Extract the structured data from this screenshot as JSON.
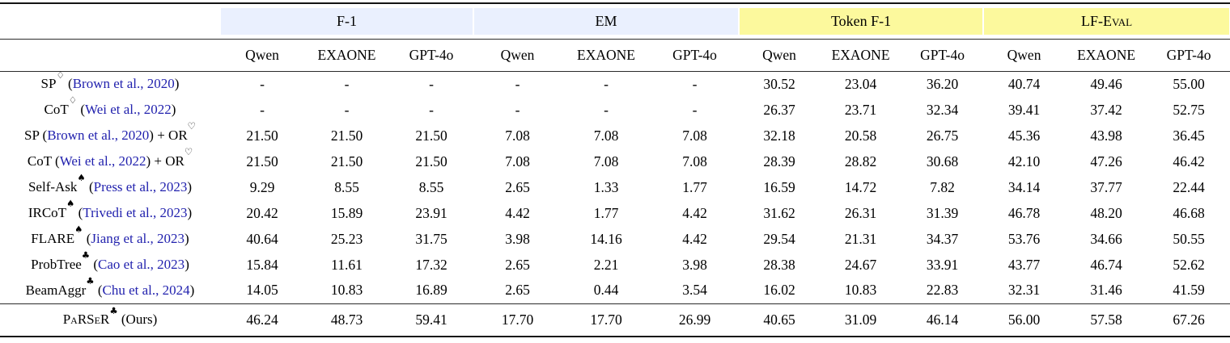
{
  "table": {
    "groups": [
      {
        "label": "F-1",
        "band": "blue"
      },
      {
        "label": "EM",
        "band": "blue"
      },
      {
        "label": "Token F-1",
        "band": "yellow"
      },
      {
        "label": "LF-Eval",
        "band": "yellow"
      }
    ],
    "models": [
      "Qwen",
      "EXAONE",
      "GPT-4o"
    ],
    "rows": [
      {
        "name": "SP",
        "name_sup": "♢",
        "cite": "Brown et al., 2020",
        "tail": "",
        "tail_sup": "",
        "values": [
          "-",
          "-",
          "-",
          "-",
          "-",
          "-",
          "30.52",
          "23.04",
          "36.20",
          "40.74",
          "49.46",
          "55.00"
        ]
      },
      {
        "name": "CoT",
        "name_sup": "♢",
        "cite": "Wei et al., 2022",
        "tail": "",
        "tail_sup": "",
        "values": [
          "-",
          "-",
          "-",
          "-",
          "-",
          "-",
          "26.37",
          "23.71",
          "32.34",
          "39.41",
          "37.42",
          "52.75"
        ]
      },
      {
        "name": "SP",
        "name_sup": "",
        "cite": "Brown et al., 2020",
        "tail": " + OR",
        "tail_sup": "♡",
        "values": [
          "21.50",
          "21.50",
          "21.50",
          "7.08",
          "7.08",
          "7.08",
          "32.18",
          "20.58",
          "26.75",
          "45.36",
          "43.98",
          "36.45"
        ]
      },
      {
        "name": "CoT",
        "name_sup": "",
        "cite": "Wei et al., 2022",
        "tail": " + OR",
        "tail_sup": "♡",
        "values": [
          "21.50",
          "21.50",
          "21.50",
          "7.08",
          "7.08",
          "7.08",
          "28.39",
          "28.82",
          "30.68",
          "42.10",
          "47.26",
          "46.42"
        ]
      },
      {
        "name": "Self-Ask",
        "name_sup": "♠",
        "cite": "Press et al., 2023",
        "tail": "",
        "tail_sup": "",
        "values": [
          "9.29",
          "8.55",
          "8.55",
          "2.65",
          "1.33",
          "1.77",
          "16.59",
          "14.72",
          "7.82",
          "34.14",
          "37.77",
          "22.44"
        ]
      },
      {
        "name": "IRCoT",
        "name_sup": "♠",
        "cite": "Trivedi et al., 2023",
        "tail": "",
        "tail_sup": "",
        "values": [
          "20.42",
          "15.89",
          "23.91",
          "4.42",
          "1.77",
          "4.42",
          "31.62",
          "26.31",
          "31.39",
          "46.78",
          "48.20",
          "46.68"
        ]
      },
      {
        "name": "FLARE",
        "name_sup": "♠",
        "cite": "Jiang et al., 2023",
        "tail": "",
        "tail_sup": "",
        "values": [
          "40.64",
          "25.23",
          "31.75",
          "3.98",
          "14.16",
          "4.42",
          "29.54",
          "21.31",
          "34.37",
          "53.76",
          "34.66",
          "50.55"
        ]
      },
      {
        "name": "ProbTree",
        "name_sup": "♣",
        "cite": "Cao et al., 2023",
        "tail": "",
        "tail_sup": "",
        "values": [
          "15.84",
          "11.61",
          "17.32",
          "2.65",
          "2.21",
          "3.98",
          "28.38",
          "24.67",
          "33.91",
          "43.77",
          "46.74",
          "52.62"
        ]
      },
      {
        "name": "BeamAggr",
        "name_sup": "♣",
        "cite": "Chu et al., 2024",
        "tail": "",
        "tail_sup": "",
        "values": [
          "14.05",
          "10.83",
          "16.89",
          "2.65",
          "0.44",
          "3.54",
          "16.02",
          "10.83",
          "22.83",
          "32.31",
          "31.46",
          "41.59"
        ]
      }
    ],
    "final_row": {
      "name": "PaRSeR",
      "smallcaps": true,
      "name_sup": "♣",
      "cite": "",
      "tail": " (Ours)",
      "tail_sup": "",
      "values": [
        "46.24",
        "48.73",
        "59.41",
        "17.70",
        "17.70",
        "26.99",
        "40.65",
        "31.09",
        "46.14",
        "56.00",
        "57.58",
        "67.26"
      ]
    }
  }
}
